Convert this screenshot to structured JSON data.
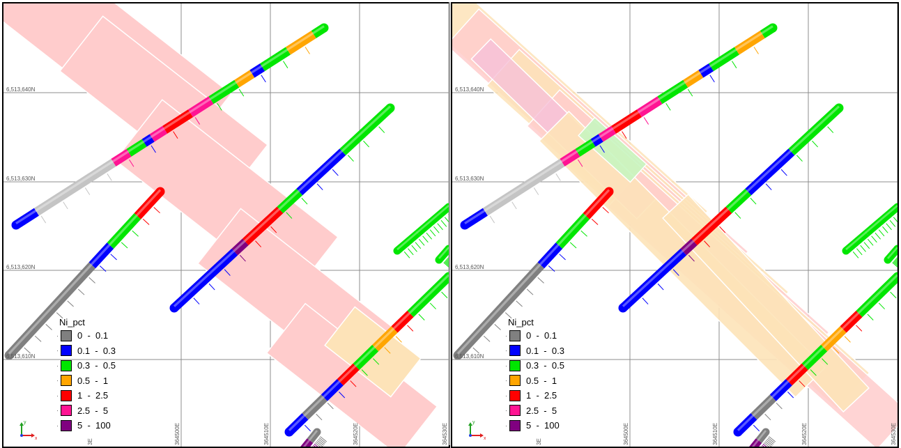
{
  "legend": {
    "title": "Ni_pct",
    "items": [
      {
        "label": "0  -  0.1",
        "color": "#808080"
      },
      {
        "label": "0.1  -  0.3",
        "color": "#0000ff"
      },
      {
        "label": "0.3  -  0.5",
        "color": "#00e600"
      },
      {
        "label": "0.5  -  1",
        "color": "#ffa500"
      },
      {
        "label": "1  -  2.5",
        "color": "#ff0000"
      },
      {
        "label": "2.5  -  5",
        "color": "#ff1493"
      },
      {
        "label": "5  -  100",
        "color": "#800080"
      }
    ]
  },
  "grid": {
    "northings": [
      "6,513,640N",
      "6,513,630N",
      "6,513,620N",
      "6,513,610N"
    ],
    "eastings": [
      "364500E",
      "364510E",
      "364520E",
      "364530E"
    ],
    "partial_easting": "3E"
  },
  "axes": {
    "x_label": "x",
    "y_label": "y"
  },
  "colors": {
    "block_red": "#ffcccc",
    "block_orange": "#fde3b8",
    "block_pink": "#f6c0d8",
    "grid_line": "#8c8c8c",
    "border": "#000000"
  }
}
